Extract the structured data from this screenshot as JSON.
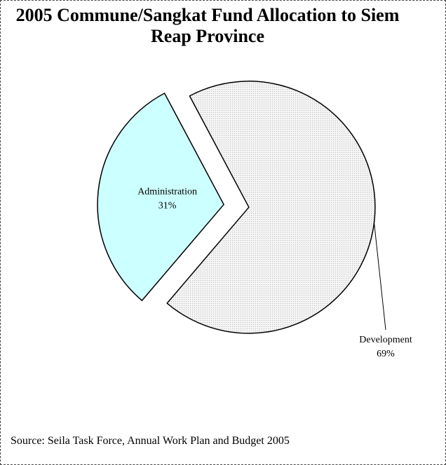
{
  "chart_data": {
    "type": "pie",
    "title": "2005 Commune/Sangkat Fund Allocation to Siem Reap Province",
    "categories": [
      "Administration",
      "Development"
    ],
    "values": [
      31,
      69
    ],
    "value_labels": [
      "31%",
      "69%"
    ],
    "colors": [
      "#ccffff",
      "#e6e6e6"
    ],
    "source": "Source: Seila Task Force, Annual Work Plan and Budget 2005"
  }
}
